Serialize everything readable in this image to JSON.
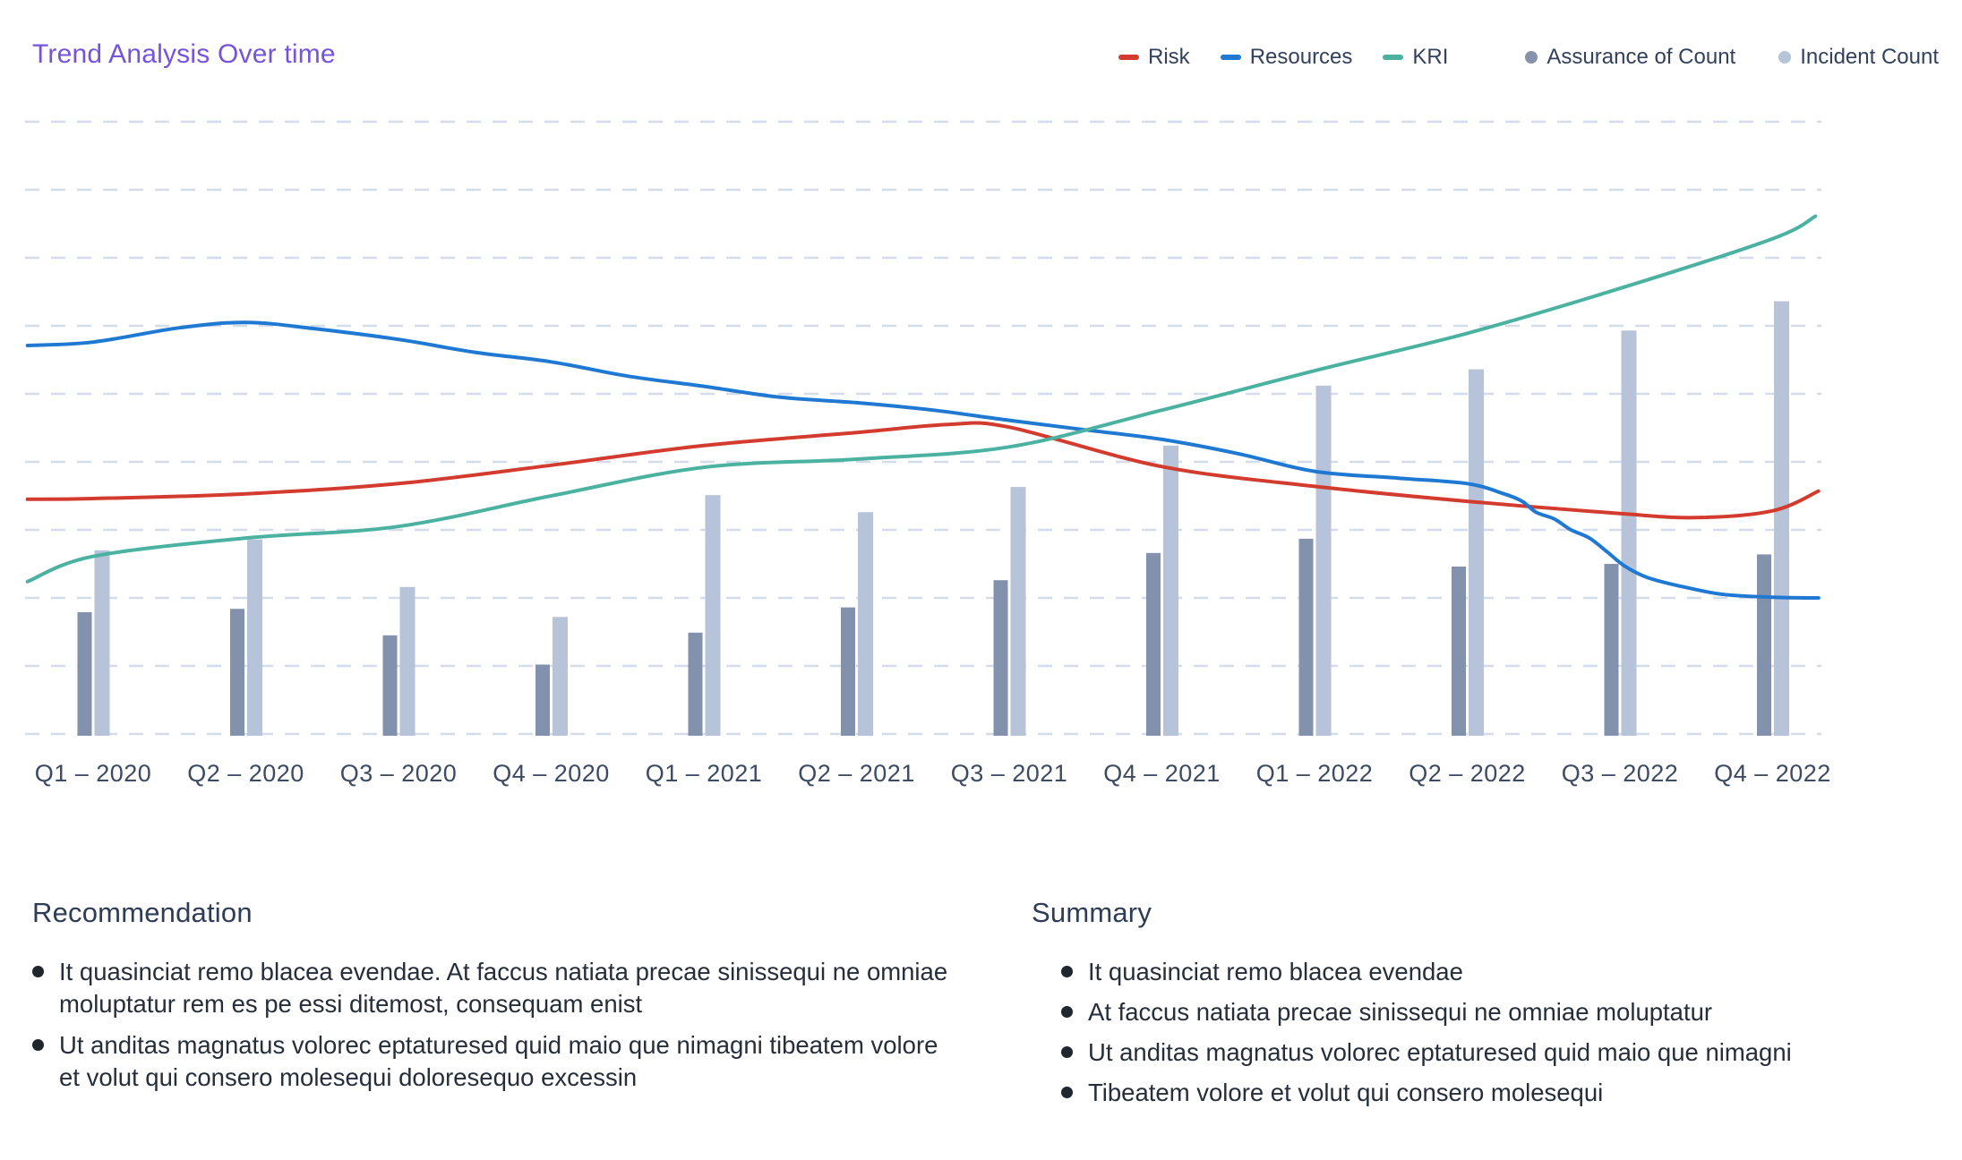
{
  "header": {
    "title": "Trend Analysis Over time"
  },
  "legend": {
    "items": [
      {
        "label": "Risk",
        "marker": "line",
        "color": "#d23b2e",
        "group": "lines"
      },
      {
        "label": "Resources",
        "marker": "line",
        "color": "#1f78d1",
        "group": "lines"
      },
      {
        "label": "KRI",
        "marker": "line",
        "color": "#4bb2a1",
        "group": "lines"
      },
      {
        "label": "Assurance of Count",
        "marker": "dot",
        "color": "#8593ad",
        "group": "bars"
      },
      {
        "label": "Incident Count",
        "marker": "dot",
        "color": "#b7c3d8",
        "group": "bars"
      }
    ]
  },
  "chart_data": {
    "type": "mixed-bar-line",
    "title": "Trend Analysis Over time",
    "categories": [
      "Q1 – 2020",
      "Q2 – 2020",
      "Q3 – 2020",
      "Q4 – 2020",
      "Q1 – 2021",
      "Q2 – 2021",
      "Q3 – 2021",
      "Q4 – 2021",
      "Q1 – 2022",
      "Q2 – 2022",
      "Q3 – 2022",
      "Q4 – 2022"
    ],
    "xlabel": "",
    "ylabel": "",
    "ylim": [
      0,
      95
    ],
    "grid": {
      "orientation": "horizontal",
      "style": "dashed",
      "divisions": 10,
      "unit_per_gridline": 10
    },
    "legend_position": "top-right",
    "bar_series": [
      {
        "name": "Assurance of Count",
        "color": "#8392ac",
        "values": [
          17.9,
          18.4,
          14.5,
          10.2,
          14.9,
          18.6,
          22.6,
          26.6,
          28.7,
          24.6,
          25.0,
          26.4
        ]
      },
      {
        "name": "Incident Count",
        "color": "#b7c3d8",
        "values": [
          27.0,
          28.6,
          21.6,
          17.2,
          35.1,
          32.6,
          36.3,
          42.4,
          51.2,
          53.6,
          59.3,
          63.6
        ]
      }
    ],
    "line_series": [
      {
        "name": "Risk",
        "color": "#d23b2e",
        "values": [
          34.6,
          35.3,
          36.8,
          39.5,
          42.4,
          44.3,
          45.1,
          39.3,
          36.4,
          34.2,
          32.4,
          32.8
        ],
        "samples": [
          [
            -0.43,
            34.5
          ],
          [
            0,
            34.6
          ],
          [
            1,
            35.3
          ],
          [
            2,
            36.8
          ],
          [
            3,
            39.5
          ],
          [
            4,
            42.4
          ],
          [
            5,
            44.3
          ],
          [
            5.6,
            45.5
          ],
          [
            6,
            45.1
          ],
          [
            7,
            39.3
          ],
          [
            8,
            36.4
          ],
          [
            9,
            34.2
          ],
          [
            10,
            32.4
          ],
          [
            10.5,
            31.8
          ],
          [
            11,
            32.8
          ],
          [
            11.3,
            35.7
          ]
        ]
      },
      {
        "name": "Resources",
        "color": "#1f78d1",
        "values": [
          57.6,
          60.5,
          58.0,
          54.7,
          51.1,
          48.7,
          46.1,
          43.3,
          38.6,
          36.8,
          24.6,
          20.1
        ],
        "samples": [
          [
            -0.43,
            57.1
          ],
          [
            0,
            57.6
          ],
          [
            0.56,
            59.7
          ],
          [
            1,
            60.5
          ],
          [
            1.44,
            59.6
          ],
          [
            2,
            58.0
          ],
          [
            2.5,
            56.1
          ],
          [
            3,
            54.7
          ],
          [
            3.5,
            52.6
          ],
          [
            4,
            51.1
          ],
          [
            4.5,
            49.5
          ],
          [
            5,
            48.7
          ],
          [
            5.5,
            47.6
          ],
          [
            6,
            46.1
          ],
          [
            6.5,
            44.7
          ],
          [
            7,
            43.3
          ],
          [
            7.5,
            41.2
          ],
          [
            8,
            38.6
          ],
          [
            8.55,
            37.6
          ],
          [
            9,
            36.8
          ],
          [
            9.24,
            35.3
          ],
          [
            9.36,
            34.2
          ],
          [
            9.45,
            32.6
          ],
          [
            9.57,
            31.6
          ],
          [
            9.68,
            30.0
          ],
          [
            9.8,
            28.8
          ],
          [
            9.92,
            26.7
          ],
          [
            10.03,
            24.7
          ],
          [
            10.18,
            23.0
          ],
          [
            10.42,
            21.6
          ],
          [
            10.68,
            20.5
          ],
          [
            11,
            20.1
          ],
          [
            11.3,
            20.0
          ]
        ]
      },
      {
        "name": "KRI",
        "color": "#4bb2a1",
        "values": [
          26.1,
          28.8,
          30.5,
          35.0,
          39.2,
          40.4,
          42.2,
          47.6,
          53.4,
          58.9,
          65.5,
          72.8
        ],
        "samples": [
          [
            -0.43,
            22.4
          ],
          [
            0,
            26.1
          ],
          [
            1,
            28.8
          ],
          [
            2,
            30.5
          ],
          [
            3,
            35.0
          ],
          [
            4,
            39.2
          ],
          [
            5,
            40.4
          ],
          [
            6,
            42.2
          ],
          [
            7,
            47.6
          ],
          [
            8,
            53.4
          ],
          [
            9,
            58.9
          ],
          [
            10,
            65.5
          ],
          [
            11,
            72.8
          ],
          [
            11.28,
            76.1
          ]
        ]
      }
    ]
  },
  "sections": {
    "recommendation": {
      "heading": "Recommendation",
      "bullets": [
        "It quasinciat remo blacea evendae. At faccus natiata precae sinissequi ne omniae moluptatur rem es pe essi ditemost, consequam enist",
        "Ut anditas magnatus volorec eptaturesed quid maio que nimagni tibeatem volore et volut qui consero molesequi doloresequo excessin"
      ]
    },
    "summary": {
      "heading": "Summary",
      "bullets": [
        "It quasinciat remo blacea evendae",
        "At faccus natiata precae sinissequi ne omniae moluptatur",
        "Ut anditas magnatus volorec eptaturesed quid maio que nimagni",
        "Tibeatem volore et volut qui consero molesequi"
      ]
    }
  },
  "colors": {
    "background": "#ffffff",
    "title": "#7553dc",
    "grid": "#d4dcea",
    "axis_label": "#3c4a63",
    "legend_text": "#33415c",
    "heading_text": "#2e3d55",
    "body_text": "#262e3a",
    "bullet_dot": "#20262e",
    "risk": "#d23b2e",
    "resources": "#1f78d1",
    "kri": "#4bb2a1",
    "assurance_bar": "#8392ac",
    "incident_bar": "#b7c3d8"
  }
}
